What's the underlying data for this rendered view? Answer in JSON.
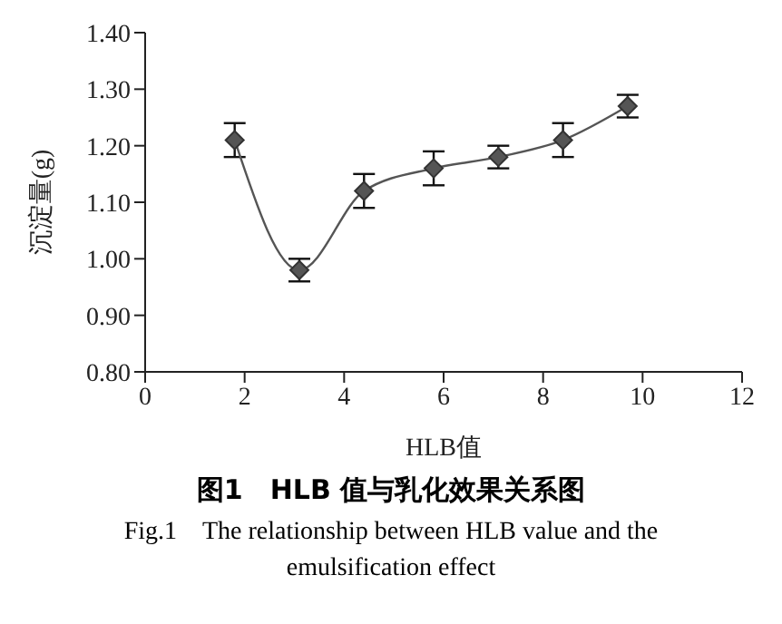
{
  "chart_data": {
    "type": "line",
    "title": "图1　HLB 值与乳化效果关系图",
    "subtitle": "Fig.1　The relationship between HLB value and the emulsification effect",
    "xlabel": "HLB值",
    "ylabel": "沉淀量(g)",
    "x": [
      1.8,
      3.1,
      4.4,
      5.8,
      7.1,
      8.4,
      9.7
    ],
    "series": [
      {
        "color": "#555555",
        "values": [
          1.21,
          0.98,
          1.12,
          1.16,
          1.18,
          1.21,
          1.27
        ],
        "errors": [
          0.03,
          0.02,
          0.03,
          0.03,
          0.02,
          0.03,
          0.02
        ]
      }
    ],
    "xlim": [
      0,
      12
    ],
    "xticks": [
      0,
      2,
      4,
      6,
      8,
      10,
      12
    ],
    "ylim": [
      0.8,
      1.4
    ],
    "yticks": [
      {
        "value": 0.8,
        "label": "0.80"
      },
      {
        "value": 0.9,
        "label": "0.90"
      },
      {
        "value": 1.0,
        "label": "1.00"
      },
      {
        "value": 1.1,
        "label": "1.10"
      },
      {
        "value": 1.2,
        "label": "1.20"
      },
      {
        "value": 1.3,
        "label": "1.30"
      },
      {
        "value": 1.4,
        "label": "1.40"
      }
    ],
    "marker": "diamond",
    "grid": false,
    "legend": false
  }
}
